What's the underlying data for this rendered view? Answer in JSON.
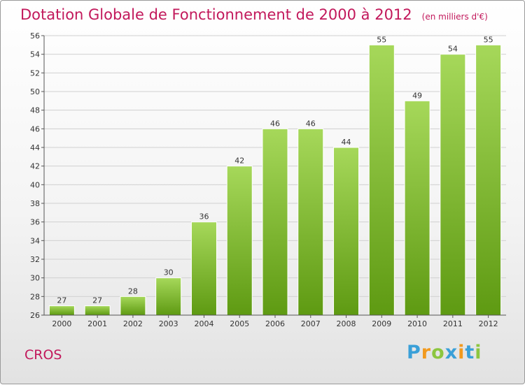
{
  "header": {
    "title": "Dotation Globale de Fonctionnement de 2000 à 2012",
    "unit": "(en milliers d'€)"
  },
  "commune": "CROS",
  "logo": {
    "letters": [
      "P",
      "r",
      "o",
      "x",
      "i",
      "t",
      "i"
    ],
    "colors": [
      "#3aa0d8",
      "#f29a1e",
      "#8cc63f",
      "#3aa0d8",
      "#f29a1e",
      "#3aa0d8",
      "#8cc63f"
    ]
  },
  "colors": {
    "title": "#c2185b",
    "bar_top": "#a6d85a",
    "bar_bottom": "#5e9a12"
  },
  "chart_data": {
    "type": "bar",
    "title": "Dotation Globale de Fonctionnement de 2000 à 2012",
    "subtitle": "(en milliers d'€)",
    "categories": [
      "2000",
      "2001",
      "2002",
      "2003",
      "2004",
      "2005",
      "2006",
      "2007",
      "2008",
      "2009",
      "2010",
      "2011",
      "2012"
    ],
    "values": [
      27,
      27,
      28,
      30,
      36,
      42,
      46,
      46,
      44,
      55,
      49,
      54,
      55
    ],
    "ylim": [
      26,
      56
    ],
    "yticks": [
      26,
      28,
      30,
      32,
      34,
      36,
      38,
      40,
      42,
      44,
      46,
      48,
      50,
      52,
      54,
      56
    ],
    "grid": true
  }
}
